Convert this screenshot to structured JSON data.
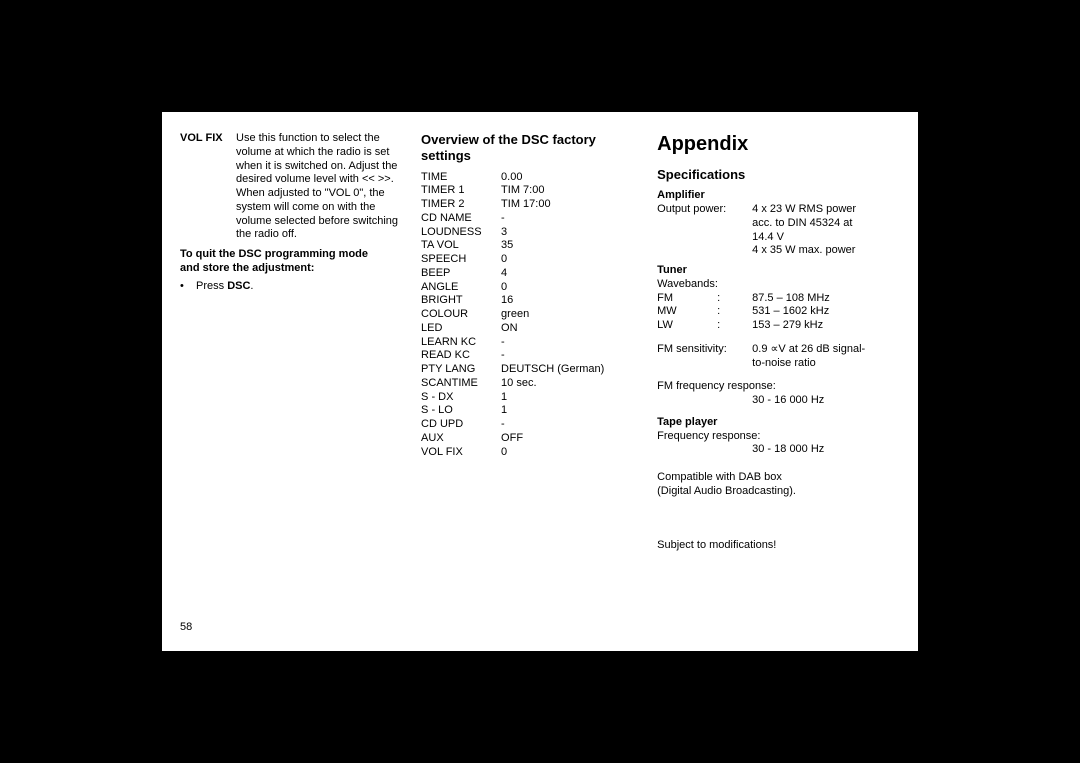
{
  "pageNumber": "58",
  "col1": {
    "volfix_label": "VOL FIX",
    "volfix_text": "Use this function to select the volume at which the radio is set when it is switched on. Adjust the desired volume level with << >>. When adjusted to \"VOL 0\", the system will come on with the volume selected before switching the radio off.",
    "quit_line1": "To quit the DSC programming mode",
    "quit_line2": "and store the adjustment:",
    "bullet_prefix": "•",
    "bullet_text": "Press ",
    "bullet_bold": "DSC",
    "bullet_suffix": "."
  },
  "col2": {
    "title": "Overview of the DSC factory settings",
    "rows": [
      {
        "k": "TIME",
        "v": "0.00"
      },
      {
        "k": "TIMER 1",
        "v": "TIM   7:00"
      },
      {
        "k": "TIMER 2",
        "v": "TIM 17:00"
      },
      {
        "k": "CD NAME",
        "v": "-"
      },
      {
        "k": "LOUDNESS",
        "v": "3"
      },
      {
        "k": "TA VOL",
        "v": "35"
      },
      {
        "k": "SPEECH",
        "v": "0"
      },
      {
        "k": "BEEP",
        "v": "4"
      },
      {
        "k": "ANGLE",
        "v": "0"
      },
      {
        "k": "BRIGHT",
        "v": "16"
      },
      {
        "k": "COLOUR",
        "v": "green"
      },
      {
        "k": "LED",
        "v": "ON"
      },
      {
        "k": "LEARN KC",
        "v": "-"
      },
      {
        "k": "READ KC",
        "v": "-"
      },
      {
        "k": "PTY LANG",
        "v": "DEUTSCH (German)"
      },
      {
        "k": "SCANTIME",
        "v": "10 sec."
      },
      {
        "k": "S - DX",
        "v": "1"
      },
      {
        "k": "S - LO",
        "v": "1"
      },
      {
        "k": "CD UPD",
        "v": "-"
      },
      {
        "k": "AUX",
        "v": "OFF"
      },
      {
        "k": "VOL FIX",
        "v": "0"
      }
    ]
  },
  "col3": {
    "appendix": "Appendix",
    "specs_title": "Specifications",
    "amp_title": "Amplifier",
    "amp_key": "Output power:",
    "amp_val1": "4 x 23 W  RMS power",
    "amp_val2": "acc. to DIN 45324 at",
    "amp_val3": "14.4 V",
    "amp_val4": "4 x 35 W max. power",
    "tuner_title": "Tuner",
    "wavebands_label": "Wavebands:",
    "waves": [
      {
        "b": "FM",
        "c": ":",
        "v": "87.5 – 108 MHz"
      },
      {
        "b": "MW",
        "c": ":",
        "v": "531 – 1602 kHz"
      },
      {
        "b": "LW",
        "c": ":",
        "v": "153 – 279 kHz"
      }
    ],
    "fm_sens_key": "FM sensitivity:",
    "fm_sens_val1": "0.9 ∝V at 26 dB signal-",
    "fm_sens_val2": "to-noise ratio",
    "fm_freq_label": "FM frequency response:",
    "fm_freq_val": "30 - 16 000 Hz",
    "tape_title": "Tape player",
    "tape_freq_label": "Frequency response:",
    "tape_freq_val": "30 - 18 000 Hz",
    "dab1": "Compatible with DAB box",
    "dab2": "(Digital Audio Broadcasting).",
    "modif": "Subject to modifications!"
  }
}
